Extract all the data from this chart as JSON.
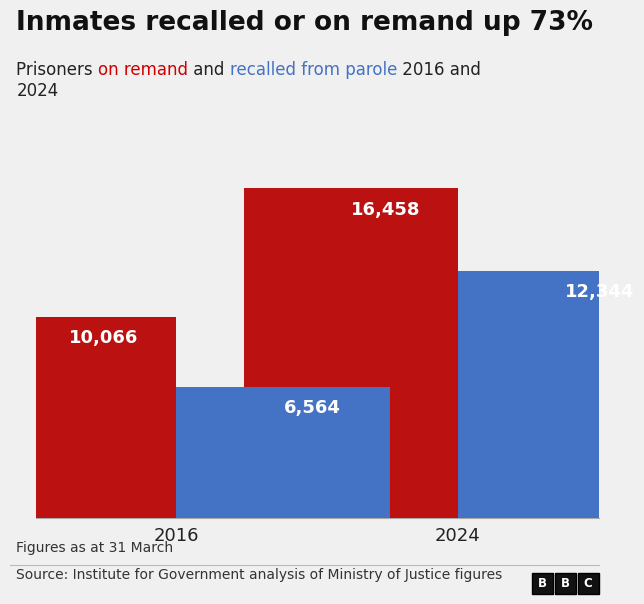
{
  "title": "Inmates recalled or on remand up 73%",
  "line1_parts": [
    {
      "text": "Prisoners ",
      "color": "#222222"
    },
    {
      "text": "on remand",
      "color": "#cc0000"
    },
    {
      "text": " and ",
      "color": "#222222"
    },
    {
      "text": "recalled from parole",
      "color": "#4472c4"
    },
    {
      "text": " 2016 and",
      "color": "#222222"
    }
  ],
  "line2_parts": [
    {
      "text": "2024",
      "color": "#222222"
    }
  ],
  "categories": [
    "2016",
    "2024"
  ],
  "remand_values": [
    10066,
    16458
  ],
  "recalled_values": [
    6564,
    12344
  ],
  "remand_color": "#bb1111",
  "recalled_color": "#4472c4",
  "bar_width": 0.38,
  "background_color": "#f0f0f0",
  "label_color": "#ffffff",
  "label_fontsize": 13,
  "title_fontsize": 19,
  "subtitle_fontsize": 12,
  "xlabel_fontsize": 13,
  "footnote1": "Figures as at 31 March",
  "footnote2": "Source: Institute for Government analysis of Ministry of Justice figures",
  "ylim": [
    0,
    18500
  ],
  "footnote_fontsize": 10
}
